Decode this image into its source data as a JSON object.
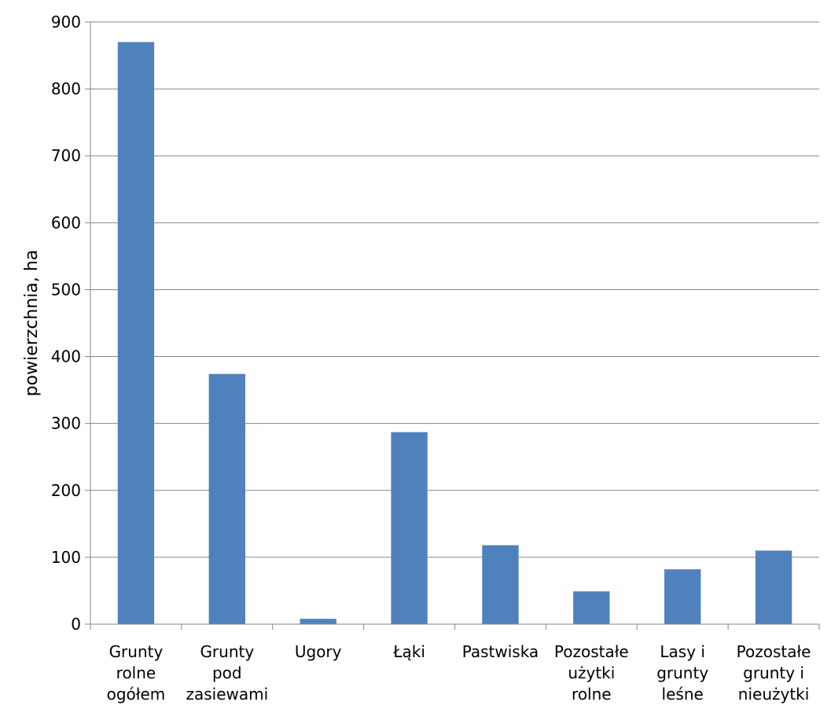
{
  "chart_data": {
    "type": "bar",
    "title": "",
    "xlabel": "",
    "ylabel": "powierzchnia, ha",
    "ylim": [
      0,
      900
    ],
    "yticks": [
      0,
      100,
      200,
      300,
      400,
      500,
      600,
      700,
      800,
      900
    ],
    "grid": true,
    "legend": "none",
    "categories": [
      [
        "Grunty",
        "rolne",
        "ogółem"
      ],
      [
        "Grunty",
        "pod",
        "zasiewami"
      ],
      [
        "Ugory"
      ],
      [
        "Łąki"
      ],
      [
        "Pastwiska"
      ],
      [
        "Pozostałe",
        "użytki",
        "rolne"
      ],
      [
        "Lasy i",
        "grunty",
        "leśne"
      ],
      [
        "Pozostałe",
        "grunty i",
        "nieużytki"
      ]
    ],
    "series": [
      {
        "values": [
          870,
          374,
          8,
          287,
          118,
          49,
          82,
          110
        ]
      }
    ],
    "colors": {
      "bar": "#4f81bd",
      "grid": "#868686",
      "axis": "#868686"
    }
  }
}
